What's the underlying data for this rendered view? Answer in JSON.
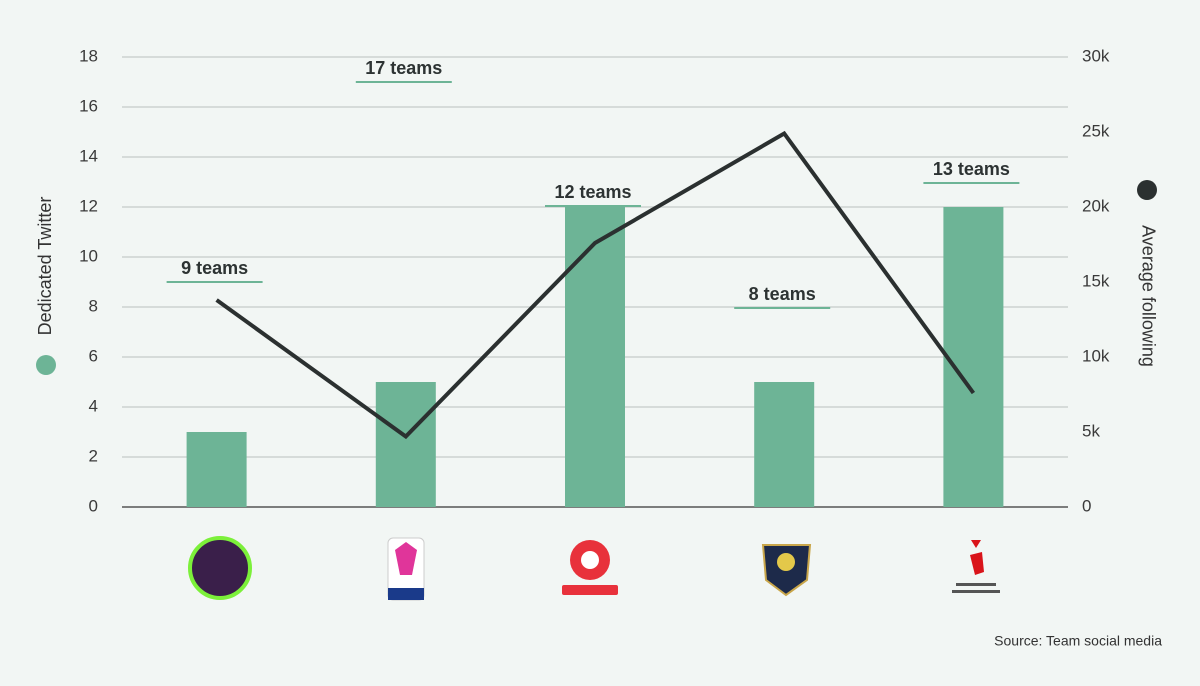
{
  "chart_data": {
    "type": "bar",
    "categories": [
      null,
      null,
      null,
      null,
      null
    ],
    "series": [
      {
        "name": "Dedicated Twitter",
        "color": "#6db496",
        "values": [
          3,
          5,
          12,
          5,
          12
        ]
      },
      {
        "name": "Average following",
        "color": "#2b3030",
        "axis": "y2",
        "type": "line",
        "values": [
          13800,
          4700,
          17600,
          24900,
          7600
        ]
      }
    ],
    "annotations": [
      "9 teams",
      "17 teams",
      "12 teams",
      "8 teams",
      "13 teams"
    ],
    "ylim": [
      0,
      18
    ],
    "yticks": [
      0,
      2,
      4,
      6,
      8,
      10,
      12,
      14,
      16,
      18
    ],
    "y2lim": [
      0,
      30000
    ],
    "y2ticks": [
      0,
      {
        "value": 5000,
        "label": "5k"
      },
      {
        "value": 10000,
        "label": "10k"
      },
      {
        "value": 15000,
        "label": "15k"
      },
      {
        "value": 20000,
        "label": "20k"
      },
      {
        "value": 25000,
        "label": "25k"
      },
      {
        "value": 30000,
        "label": "30k"
      }
    ],
    "grid": true,
    "source": "Source: Team social media"
  }
}
